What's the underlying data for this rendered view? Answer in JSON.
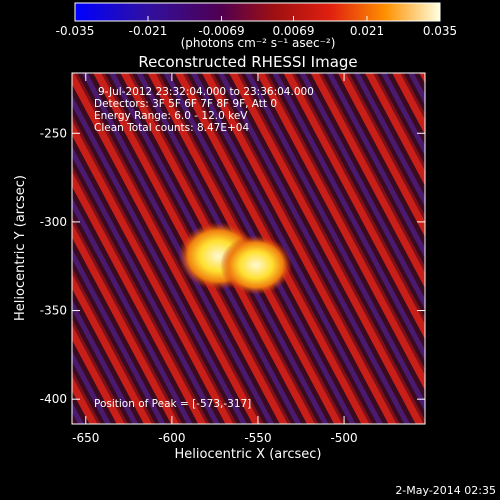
{
  "chart_data": {
    "type": "image",
    "title": "Reconstructed RHESSI Image",
    "x_label": "Heliocentric X (arcsec)",
    "y_label": "Heliocentric Y (arcsec)",
    "xlim": [
      -658,
      -453
    ],
    "xticks": [
      -650,
      -600,
      -550,
      -500
    ],
    "ylim": [
      -414,
      -216
    ],
    "yticks": [
      -400,
      -350,
      -300,
      -250
    ],
    "colorbar": {
      "label": "(photons cm⁻² s⁻¹ asec⁻²)",
      "xlim": [
        -0.035,
        0.035
      ],
      "xticks": [
        -0.035,
        -0.021,
        -0.0069,
        0.0069,
        0.021,
        0.035
      ]
    },
    "annotations": [
      "9-Jul-2012 23:32:04.000 to 23:36:04.000",
      "Detectors: 3F 5F 6F 7F 8F 9F, Att 0",
      "Energy Range: 6.0 - 12.0 keV",
      "Clean     Total counts: 8.47E+04"
    ],
    "peak_label": "Position of Peak = [-573,-317]",
    "footer": "2-May-2014 02:35"
  }
}
